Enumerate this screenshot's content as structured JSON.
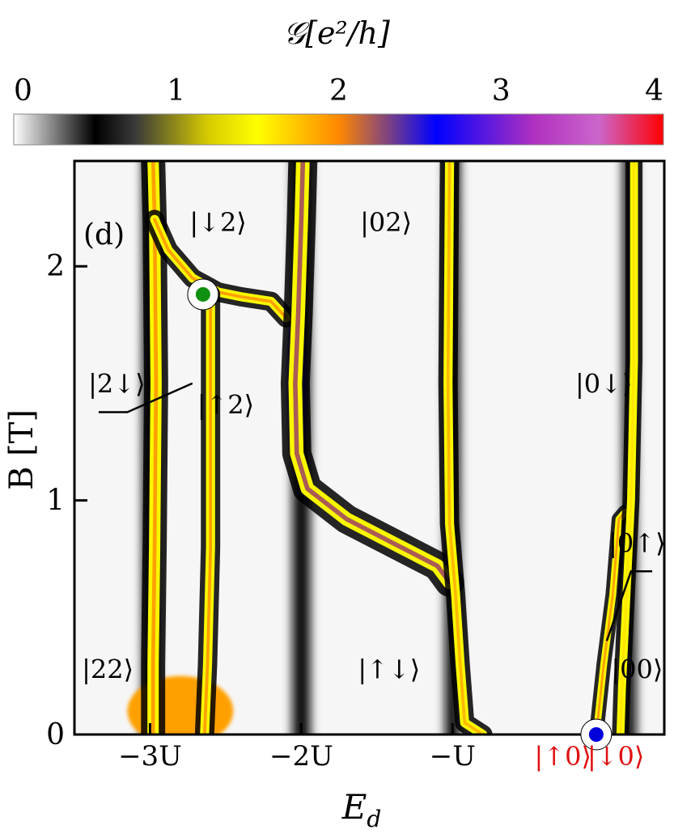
{
  "chart_data": {
    "type": "heatmap",
    "title": "",
    "colorbar": {
      "label": "𝒢[e²/h]",
      "ticks": [
        "0",
        "1",
        "2",
        "3",
        "4"
      ],
      "range": [
        0,
        4
      ],
      "stops": [
        {
          "v": 0.0,
          "color": "#ffffff"
        },
        {
          "v": 0.5,
          "color": "#000000"
        },
        {
          "v": 0.75,
          "color": "#3a3a3a"
        },
        {
          "v": 1.2,
          "color": "#d8cc00"
        },
        {
          "v": 1.5,
          "color": "#ffff00"
        },
        {
          "v": 2.0,
          "color": "#ff8800"
        },
        {
          "v": 2.6,
          "color": "#0000ff"
        },
        {
          "v": 3.2,
          "color": "#b030c0"
        },
        {
          "v": 3.6,
          "color": "#cc66cc"
        },
        {
          "v": 4.0,
          "color": "#ff0000"
        }
      ]
    },
    "panel_label": "(d)",
    "xlabel": "E",
    "xlabel_sub": "d",
    "ylabel": "B [T]",
    "x_ticks": [
      "−3U",
      "−2U",
      "−U"
    ],
    "x_tick_values": [
      -3,
      -2,
      -1
    ],
    "xlim": [
      -3.5,
      0.4
    ],
    "y_ticks": [
      "0",
      "1",
      "2"
    ],
    "y_tick_values": [
      0,
      1,
      2
    ],
    "ylim": [
      0,
      2.45
    ],
    "state_labels": [
      {
        "text": "|↓2⟩",
        "x": -2.55,
        "y": 2.15
      },
      {
        "text": "|02⟩",
        "x": -1.44,
        "y": 2.15
      },
      {
        "text": "|2↓⟩",
        "x": -3.22,
        "y": 1.46
      },
      {
        "text": "|↑2⟩",
        "x": -2.5,
        "y": 1.37
      },
      {
        "text": "|0↓⟩",
        "x": 0.0,
        "y": 1.46
      },
      {
        "text": "|0↑⟩",
        "x": 0.22,
        "y": 0.78
      },
      {
        "text": "|22⟩",
        "x": -3.28,
        "y": 0.24
      },
      {
        "text": "|↑↓⟩",
        "x": -1.42,
        "y": 0.24
      },
      {
        "text": "|00⟩",
        "x": 0.22,
        "y": 0.24
      }
    ],
    "below_axis_labels": [
      {
        "text": "|↑0⟩",
        "x": -0.27,
        "color": "#e01010"
      },
      {
        "text": "|↓0⟩",
        "x": 0.08,
        "color": "#e01010"
      }
    ],
    "markers": [
      {
        "x": -2.65,
        "y": 1.88,
        "fill": "#109010",
        "ring": "#ffffff"
      },
      {
        "x": -0.05,
        "y": 0.0,
        "fill": "#0000dd",
        "ring": "#ffffff"
      }
    ],
    "curves": [
      {
        "name": "ridge-left",
        "g": 1.9,
        "width": 0.05,
        "points": [
          [
            -2.98,
            2.45
          ],
          [
            -2.97,
            2.2
          ],
          [
            -2.96,
            1.5
          ],
          [
            -2.97,
            0.8
          ],
          [
            -2.98,
            0.3
          ],
          [
            -2.98,
            0.0
          ]
        ]
      },
      {
        "name": "ridge-left-branch",
        "g": 1.9,
        "width": 0.04,
        "points": [
          [
            -2.97,
            2.2
          ],
          [
            -2.88,
            2.07
          ],
          [
            -2.72,
            1.95
          ],
          [
            -2.55,
            1.89
          ],
          [
            -2.4,
            1.87
          ],
          [
            -2.2,
            1.85
          ],
          [
            -2.1,
            1.78
          ]
        ]
      },
      {
        "name": "ridge-uarrow2",
        "g": 1.9,
        "width": 0.04,
        "points": [
          [
            -2.6,
            1.88
          ],
          [
            -2.6,
            1.5
          ],
          [
            -2.6,
            0.8
          ],
          [
            -2.62,
            0.3
          ],
          [
            -2.64,
            0.0
          ]
        ]
      },
      {
        "name": "ridge-center",
        "g": 2.2,
        "width": 0.06,
        "points": [
          [
            -1.99,
            2.45
          ],
          [
            -2.0,
            2.2
          ],
          [
            -2.02,
            1.8
          ],
          [
            -2.04,
            1.5
          ],
          [
            -2.03,
            1.2
          ],
          [
            -1.96,
            1.05
          ],
          [
            -1.7,
            0.92
          ],
          [
            -1.4,
            0.82
          ],
          [
            -1.1,
            0.72
          ],
          [
            -1.02,
            0.65
          ]
        ]
      },
      {
        "name": "ridge-minusU",
        "g": 1.8,
        "width": 0.04,
        "points": [
          [
            -1.02,
            2.45
          ],
          [
            -1.03,
            1.5
          ],
          [
            -1.02,
            0.9
          ],
          [
            -0.98,
            0.6
          ],
          [
            -0.95,
            0.3
          ],
          [
            -0.92,
            0.05
          ],
          [
            -0.8,
            0.0
          ]
        ]
      },
      {
        "name": "ridge-right-diag",
        "g": 1.9,
        "width": 0.03,
        "points": [
          [
            -0.05,
            0.0
          ],
          [
            0.0,
            0.3
          ],
          [
            0.06,
            0.6
          ],
          [
            0.1,
            0.92
          ],
          [
            0.14,
            0.95
          ]
        ]
      },
      {
        "name": "ridge-right",
        "g": 1.6,
        "width": 0.035,
        "points": [
          [
            0.2,
            2.45
          ],
          [
            0.2,
            1.6
          ],
          [
            0.18,
            1.0
          ],
          [
            0.15,
            0.6
          ],
          [
            0.12,
            0.2
          ],
          [
            0.11,
            0.0
          ]
        ]
      }
    ],
    "blobs": [
      {
        "name": "blue-lobe",
        "x": -2.03,
        "y": 1.5,
        "rx": 0.06,
        "ry": 0.35,
        "g": 2.7
      },
      {
        "name": "orange-base",
        "x": -2.8,
        "y": 0.1,
        "rx": 0.35,
        "ry": 0.15,
        "g": 1.9
      }
    ],
    "dark_bands": [
      {
        "x": -3.0,
        "w": 0.1
      },
      {
        "x": -2.0,
        "w": 0.12
      },
      {
        "x": -1.0,
        "w": 0.1
      },
      {
        "x": 0.17,
        "w": 0.09
      }
    ]
  }
}
